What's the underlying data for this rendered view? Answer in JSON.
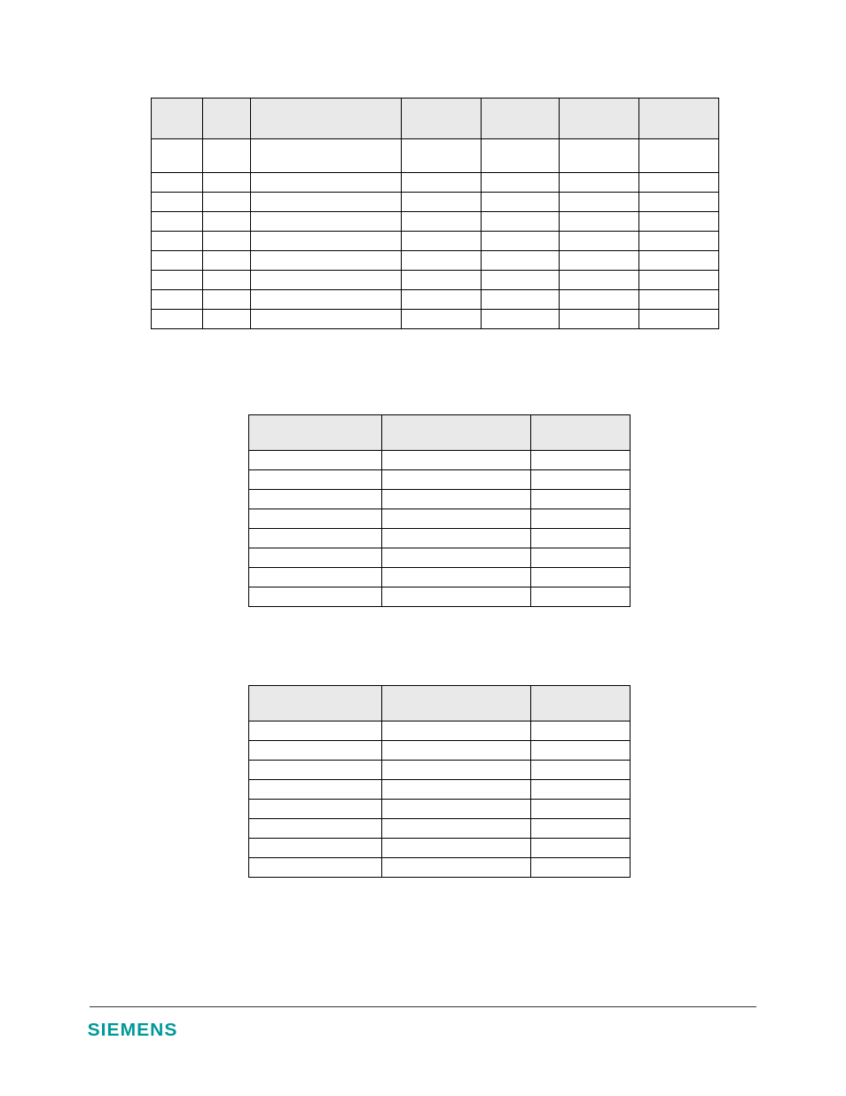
{
  "table1": {
    "header_bg": "#e9e9e9",
    "columns": [
      "",
      "",
      "",
      "",
      "",
      "",
      ""
    ],
    "rows": [
      [
        "",
        "",
        "",
        "",
        "",
        "",
        ""
      ],
      [
        "",
        "",
        "",
        "",
        "",
        "",
        ""
      ],
      [
        "",
        "",
        "",
        "",
        "",
        "",
        ""
      ],
      [
        "",
        "",
        "",
        "",
        "",
        "",
        ""
      ],
      [
        "",
        "",
        "",
        "",
        "",
        "",
        ""
      ],
      [
        "",
        "",
        "",
        "",
        "",
        "",
        ""
      ],
      [
        "",
        "",
        "",
        "",
        "",
        "",
        ""
      ],
      [
        "",
        "",
        "",
        "",
        "",
        "",
        ""
      ],
      [
        "",
        "",
        "",
        "",
        "",
        "",
        ""
      ]
    ]
  },
  "table2": {
    "header_bg": "#e9e9e9",
    "columns": [
      "",
      "",
      ""
    ],
    "rows": [
      [
        "",
        "",
        ""
      ],
      [
        "",
        "",
        ""
      ],
      [
        "",
        "",
        ""
      ],
      [
        "",
        "",
        ""
      ],
      [
        "",
        "",
        ""
      ],
      [
        "",
        "",
        ""
      ],
      [
        "",
        "",
        ""
      ],
      [
        "",
        "",
        ""
      ]
    ]
  },
  "table3": {
    "header_bg": "#e9e9e9",
    "columns": [
      "",
      "",
      ""
    ],
    "rows": [
      [
        "",
        "",
        ""
      ],
      [
        "",
        "",
        ""
      ],
      [
        "",
        "",
        ""
      ],
      [
        "",
        "",
        ""
      ],
      [
        "",
        "",
        ""
      ],
      [
        "",
        "",
        ""
      ],
      [
        "",
        "",
        ""
      ],
      [
        "",
        "",
        ""
      ]
    ]
  },
  "footer": {
    "logo": "SIEMENS",
    "logo_color": "#009999"
  }
}
